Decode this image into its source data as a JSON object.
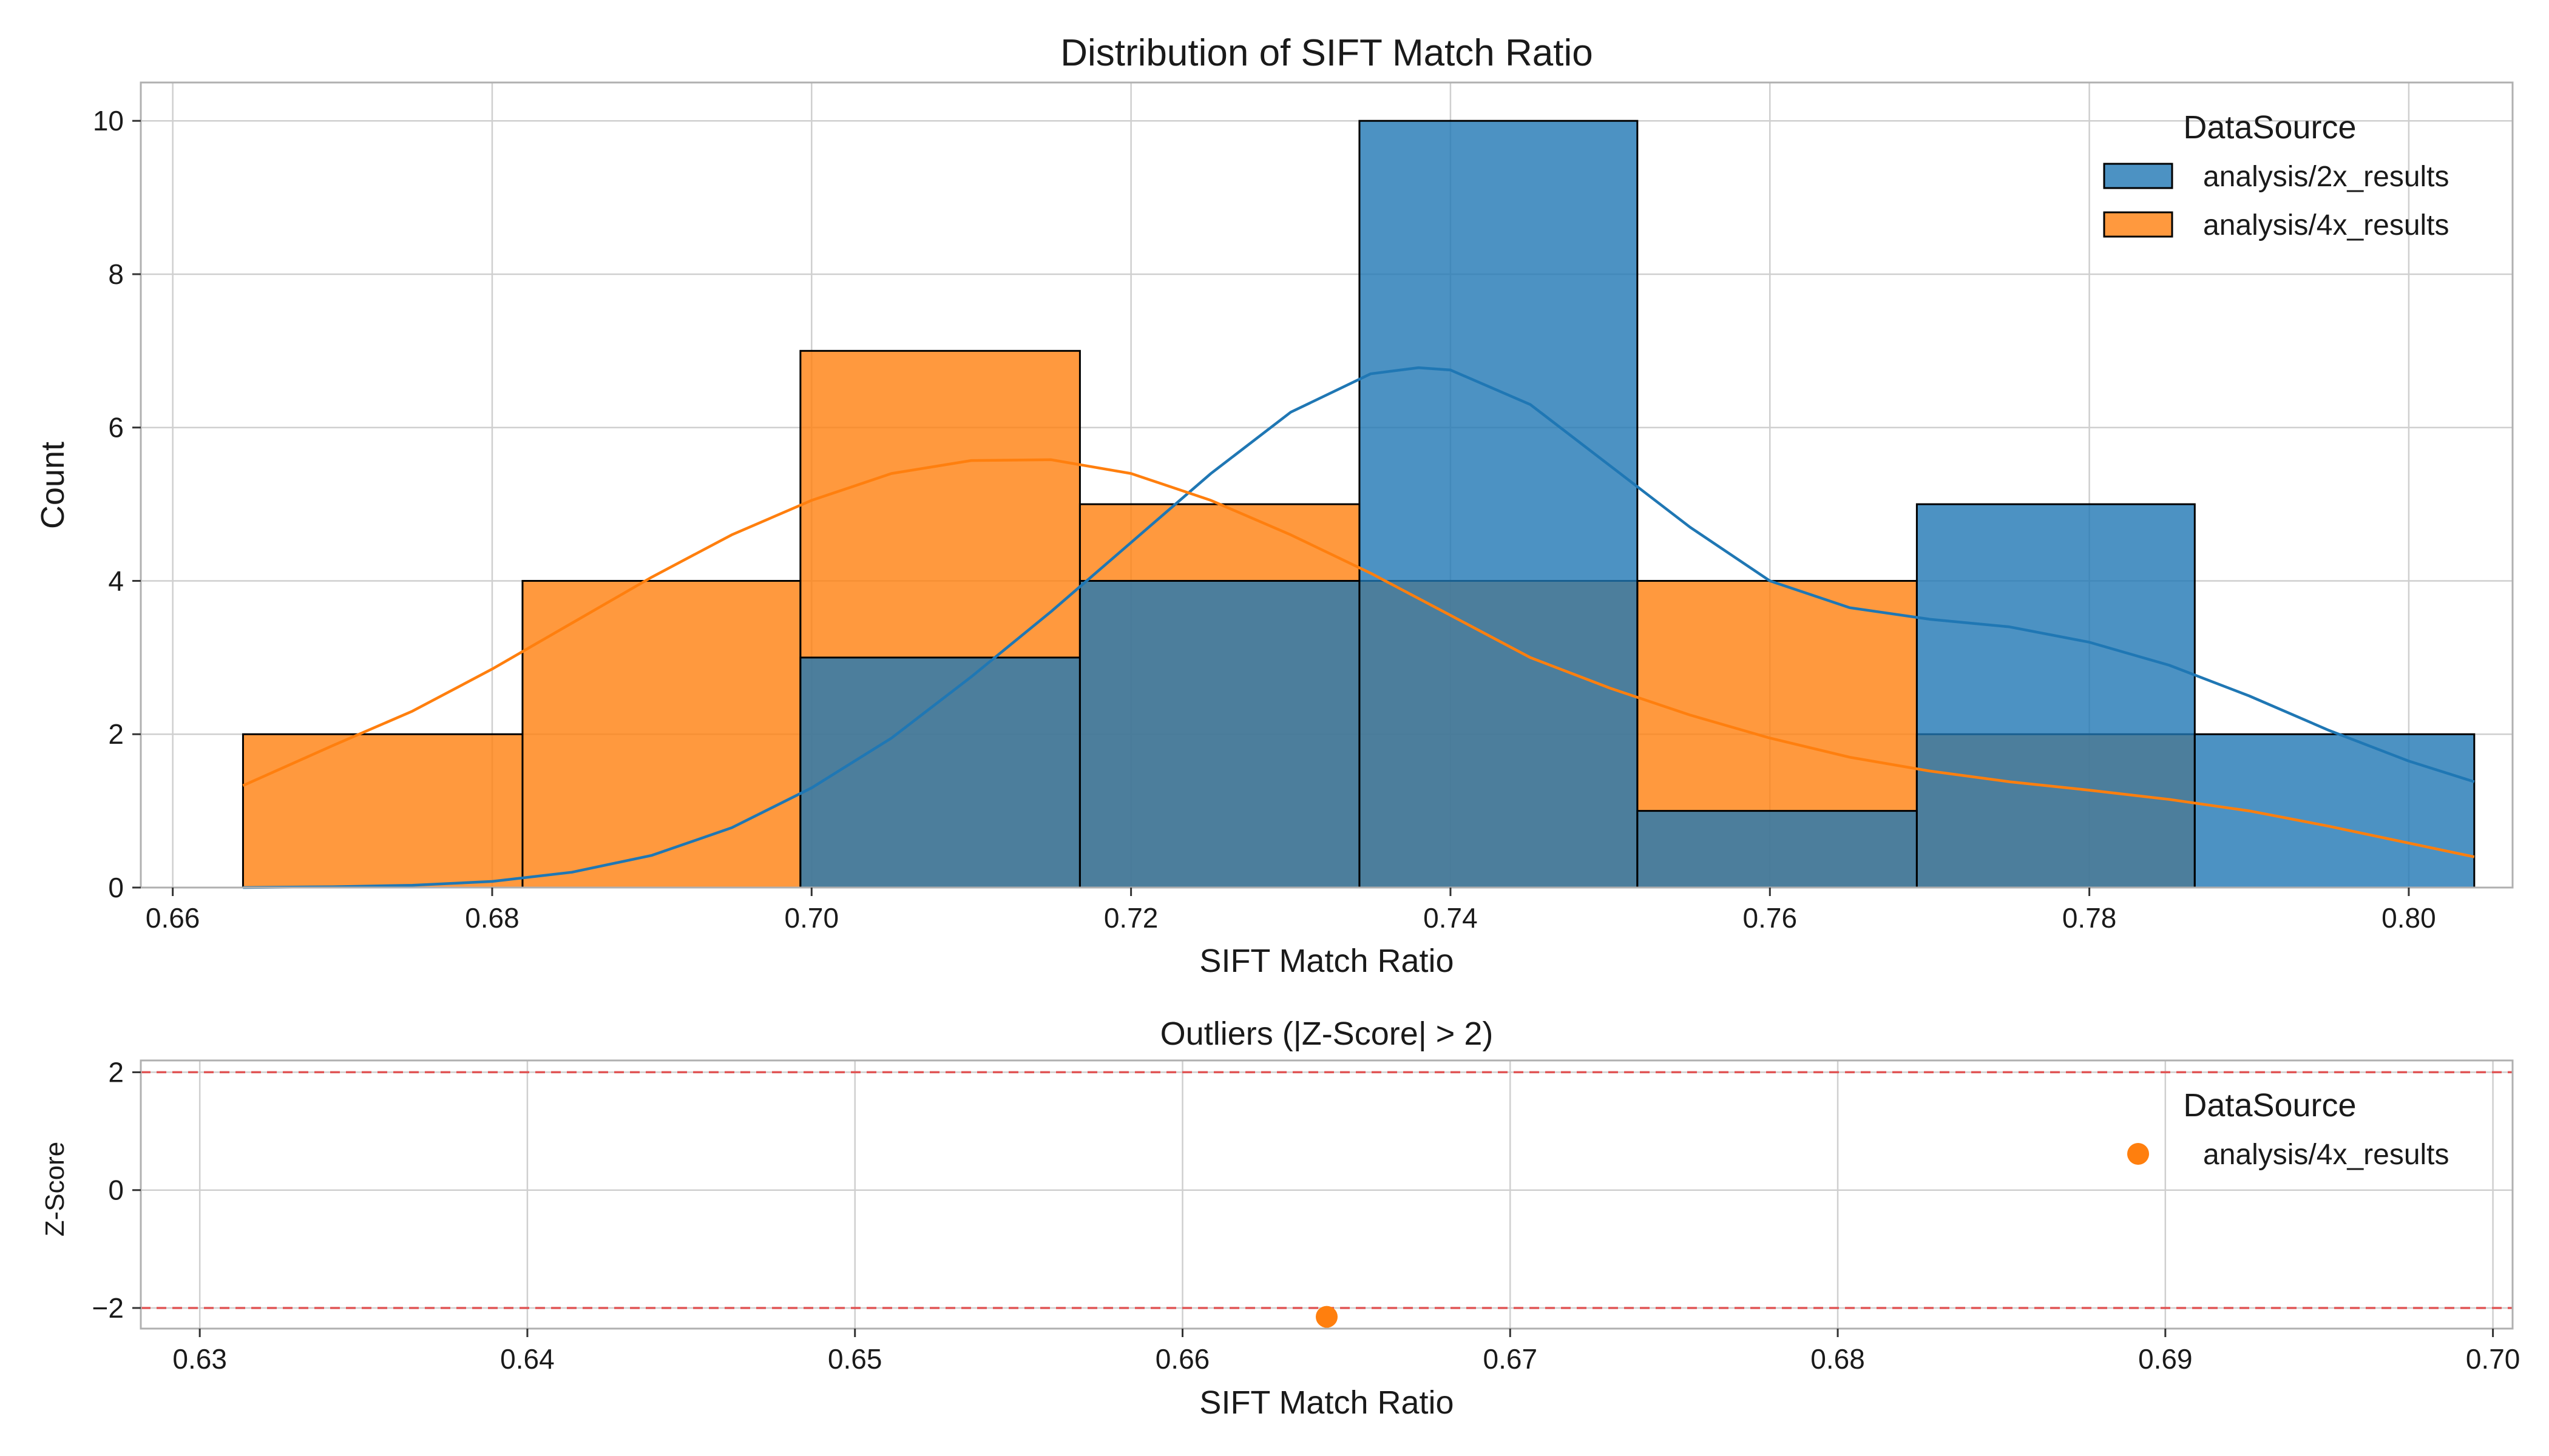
{
  "colors": {
    "analysis_2x": "#1f77b4",
    "analysis_4x": "#ff7f0e",
    "threshold_line": "#e05555"
  },
  "chart_data": [
    {
      "type": "bar",
      "subtype": "overlaid histogram with kde",
      "title": "Distribution of SIFT Match Ratio",
      "xlabel": "SIFT Match Ratio",
      "ylabel": "Count",
      "xlim": [
        0.658,
        0.8065
      ],
      "ylim": [
        0,
        10.5
      ],
      "xticks": [
        "0.66",
        "0.68",
        "0.70",
        "0.72",
        "0.74",
        "0.76",
        "0.78",
        "0.80"
      ],
      "xtick_values": [
        0.66,
        0.68,
        0.7,
        0.72,
        0.74,
        0.76,
        0.78,
        0.8
      ],
      "yticks": [
        "0",
        "2",
        "4",
        "6",
        "8",
        "10"
      ],
      "ytick_values": [
        0,
        2,
        4,
        6,
        8,
        10
      ],
      "grid": true,
      "legend": {
        "title": "DataSource",
        "position": "top-right",
        "entries": [
          "analysis/2x_results",
          "analysis/4x_results"
        ]
      },
      "bin_edges": [
        0.6644,
        0.6819,
        0.6993,
        0.7168,
        0.7343,
        0.7517,
        0.7692,
        0.7866,
        0.8041
      ],
      "series": [
        {
          "name": "analysis/2x_results",
          "color_key": "analysis_2x",
          "counts": [
            0,
            0,
            3,
            4,
            10,
            1,
            5,
            2
          ],
          "kde": {
            "x": [
              0.6644,
              0.67,
              0.675,
              0.68,
              0.685,
              0.69,
              0.695,
              0.7,
              0.705,
              0.71,
              0.715,
              0.72,
              0.725,
              0.73,
              0.735,
              0.738,
              0.74,
              0.745,
              0.75,
              0.755,
              0.76,
              0.765,
              0.77,
              0.775,
              0.78,
              0.785,
              0.79,
              0.795,
              0.8,
              0.8041
            ],
            "y": [
              0.0,
              0.01,
              0.03,
              0.08,
              0.2,
              0.42,
              0.78,
              1.3,
              1.95,
              2.75,
              3.6,
              4.5,
              5.4,
              6.2,
              6.7,
              6.78,
              6.75,
              6.3,
              5.5,
              4.7,
              4.0,
              3.65,
              3.5,
              3.4,
              3.2,
              2.9,
              2.5,
              2.05,
              1.65,
              1.38
            ]
          }
        },
        {
          "name": "analysis/4x_results",
          "color_key": "analysis_4x",
          "counts": [
            2,
            4,
            7,
            5,
            4,
            4,
            2,
            0
          ],
          "kde": {
            "x": [
              0.6644,
              0.67,
              0.675,
              0.68,
              0.685,
              0.69,
              0.695,
              0.7,
              0.705,
              0.71,
              0.715,
              0.72,
              0.725,
              0.73,
              0.735,
              0.74,
              0.745,
              0.75,
              0.755,
              0.76,
              0.765,
              0.77,
              0.775,
              0.78,
              0.785,
              0.79,
              0.795,
              0.8,
              0.8041
            ],
            "y": [
              1.33,
              1.85,
              2.3,
              2.85,
              3.45,
              4.05,
              4.6,
              5.05,
              5.4,
              5.57,
              5.58,
              5.4,
              5.05,
              4.6,
              4.1,
              3.55,
              3.0,
              2.6,
              2.25,
              1.95,
              1.7,
              1.52,
              1.38,
              1.27,
              1.15,
              1.0,
              0.8,
              0.58,
              0.4
            ]
          }
        }
      ]
    },
    {
      "type": "scatter",
      "title": "Outliers (|Z-Score| > 2)",
      "xlabel": "SIFT Match Ratio",
      "ylabel": "Z-Score",
      "xlim": [
        0.6282,
        0.7006
      ],
      "ylim": [
        -2.35,
        2.2
      ],
      "xticks": [
        "0.63",
        "0.64",
        "0.65",
        "0.66",
        "0.67",
        "0.68",
        "0.69",
        "0.70"
      ],
      "xtick_values": [
        0.63,
        0.64,
        0.65,
        0.66,
        0.67,
        0.68,
        0.69,
        0.7
      ],
      "yticks": [
        "2",
        "0",
        "−2"
      ],
      "ytick_values": [
        2,
        0,
        -2
      ],
      "grid": true,
      "reference_lines": [
        2,
        -2
      ],
      "legend": {
        "title": "DataSource",
        "position": "top-right",
        "entries": [
          "analysis/4x_results"
        ]
      },
      "series": [
        {
          "name": "analysis/4x_results",
          "color_key": "analysis_4x",
          "points": [
            {
              "x": 0.6644,
              "y": -2.15
            }
          ]
        }
      ]
    }
  ]
}
